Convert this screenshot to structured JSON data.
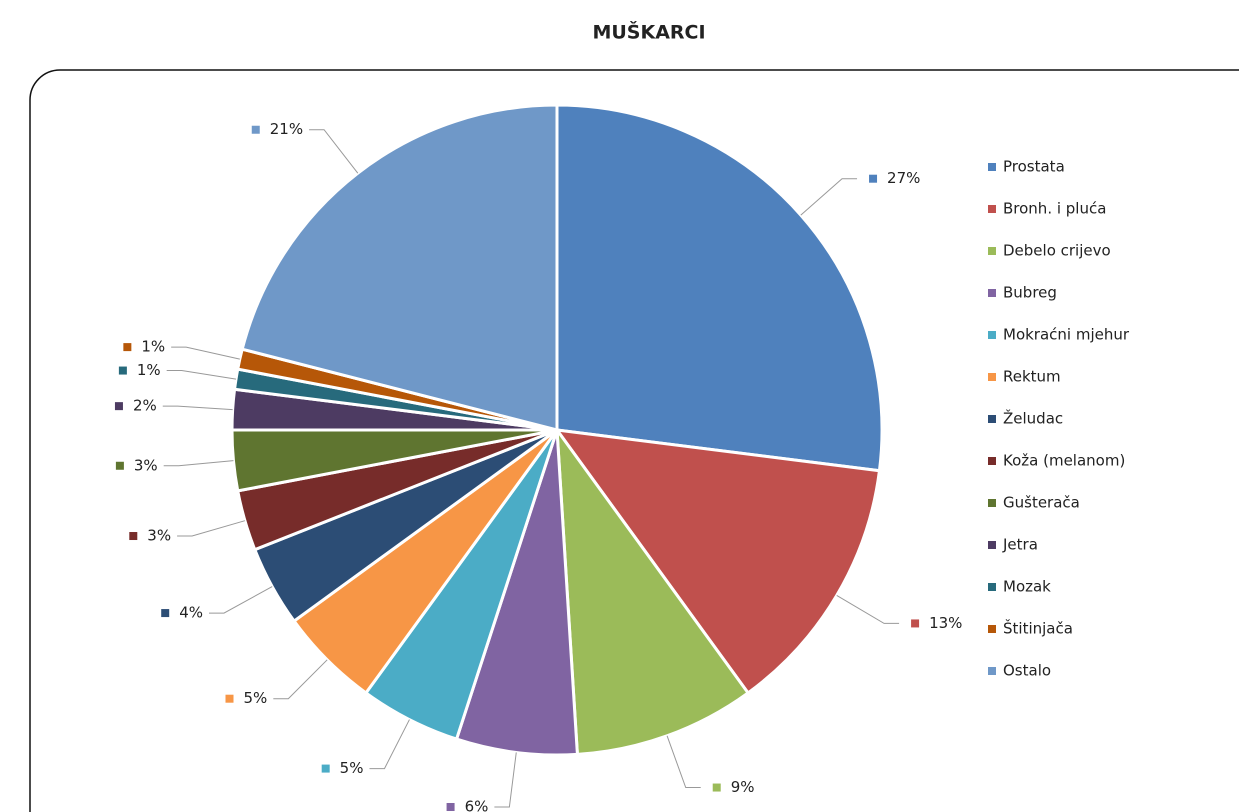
{
  "chart_data": {
    "type": "pie",
    "title": "MUŠKARCI",
    "categories": [
      "Prostata",
      "Bronh. i pluća",
      "Debelo crijevo",
      "Bubreg",
      "Mokraćni mjehur",
      "Rektum",
      "Želudac",
      "Koža (melanom)",
      "Gušterača",
      "Jetra",
      "Mozak",
      "Štitinjača",
      "Ostalo"
    ],
    "values": [
      27,
      13,
      9,
      6,
      5,
      5,
      4,
      3,
      3,
      2,
      1,
      1,
      21
    ],
    "value_labels": [
      "27%",
      "13%",
      "9%",
      "6%",
      "5%",
      "5%",
      "4%",
      "3%",
      "3%",
      "2%",
      "1%",
      "1%",
      "21%"
    ],
    "colors": [
      "#4f81bd",
      "#c0504d",
      "#9bbb59",
      "#8064a2",
      "#4bacc6",
      "#f79646",
      "#2c4d75",
      "#772c2a",
      "#5f7530",
      "#4d3b62",
      "#276a7c",
      "#b65708",
      "#6f98c8"
    ],
    "legend": "right"
  }
}
